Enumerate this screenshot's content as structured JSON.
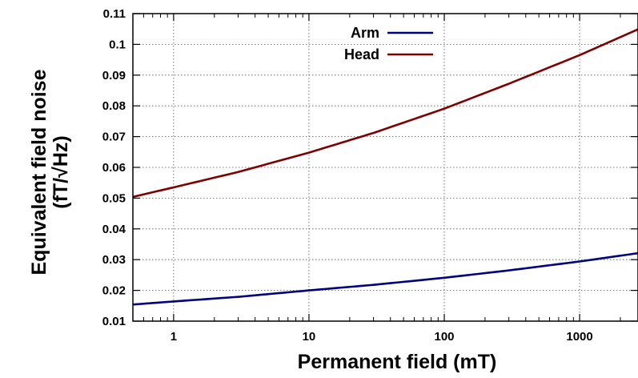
{
  "chart_data": {
    "type": "line",
    "xscale": "log",
    "xlim": [
      0.5,
      2700
    ],
    "ylim": [
      0.01,
      0.11
    ],
    "xlabel": "Permanent field (mT)",
    "ylabel_line1": "Equivalent field noise",
    "ylabel_line2": "(fT/√Hz)",
    "xticks": [
      {
        "value": 1,
        "label": "1"
      },
      {
        "value": 10,
        "label": "10"
      },
      {
        "value": 100,
        "label": "100"
      },
      {
        "value": 1000,
        "label": "1000"
      }
    ],
    "yticks": [
      {
        "value": 0.01,
        "label": "0.01"
      },
      {
        "value": 0.02,
        "label": "0.02"
      },
      {
        "value": 0.03,
        "label": "0.03"
      },
      {
        "value": 0.04,
        "label": "0.04"
      },
      {
        "value": 0.05,
        "label": "0.05"
      },
      {
        "value": 0.06,
        "label": "0.06"
      },
      {
        "value": 0.07,
        "label": "0.07"
      },
      {
        "value": 0.08,
        "label": "0.08"
      },
      {
        "value": 0.09,
        "label": "0.09"
      },
      {
        "value": 0.1,
        "label": "0.1"
      },
      {
        "value": 0.11,
        "label": "0.11"
      }
    ],
    "grid": true,
    "legend_position": "top-center",
    "series": [
      {
        "name": "Arm",
        "color": "#00007f",
        "x": [
          0.5,
          1,
          3,
          10,
          30,
          100,
          300,
          1000,
          2700
        ],
        "y": [
          0.0154,
          0.0164,
          0.0179,
          0.02,
          0.0218,
          0.0241,
          0.0265,
          0.0294,
          0.0321
        ]
      },
      {
        "name": "Head",
        "color": "#7f0000",
        "x": [
          0.5,
          1,
          3,
          10,
          30,
          100,
          300,
          1000,
          2700
        ],
        "y": [
          0.0504,
          0.0535,
          0.0585,
          0.0648,
          0.0712,
          0.0791,
          0.0872,
          0.0965,
          0.1049
        ]
      }
    ]
  }
}
